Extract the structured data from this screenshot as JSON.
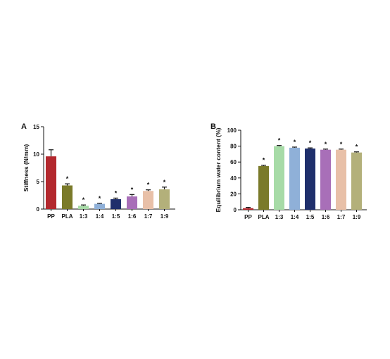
{
  "chart_data": [
    {
      "panel": "A",
      "type": "bar",
      "ylabel": "Stiffness (N/mm)",
      "xlabel": "",
      "ylim": [
        0,
        15
      ],
      "yticks": [
        0,
        5,
        10,
        15
      ],
      "categories": [
        "PP",
        "PLA",
        "1:3",
        "1:4",
        "1:5",
        "1:6",
        "1:7",
        "1:9"
      ],
      "values": [
        9.6,
        4.3,
        0.6,
        0.95,
        1.8,
        2.3,
        3.3,
        3.6
      ],
      "errors": [
        1.2,
        0.3,
        0.15,
        0.1,
        0.2,
        0.35,
        0.2,
        0.4
      ],
      "significance": [
        "",
        "*",
        "*",
        "*",
        "*",
        "*",
        "*",
        "*"
      ],
      "colors": [
        "#b3282e",
        "#7a7a2a",
        "#a7dba7",
        "#8fb0d8",
        "#1f2f6b",
        "#a86fb8",
        "#e8c0a8",
        "#b3b07a"
      ]
    },
    {
      "panel": "B",
      "type": "bar",
      "ylabel": "Equilibrium water content (%)",
      "xlabel": "",
      "ylim": [
        0,
        100
      ],
      "yticks": [
        0,
        20,
        40,
        60,
        80,
        100
      ],
      "categories": [
        "PP",
        "PLA",
        "1:3",
        "1:4",
        "1:5",
        "1:6",
        "1:7",
        "1:9"
      ],
      "values": [
        2,
        55,
        80,
        78,
        77,
        75.5,
        75.5,
        72
      ],
      "errors": [
        1,
        1,
        0.8,
        0.8,
        0.8,
        0.8,
        0.8,
        0.8
      ],
      "significance": [
        "",
        "*",
        "*",
        "*",
        "*",
        "*",
        "*",
        "*"
      ],
      "colors": [
        "#b3282e",
        "#7a7a2a",
        "#a7dba7",
        "#8fb0d8",
        "#1f2f6b",
        "#a86fb8",
        "#e8c0a8",
        "#b3b07a"
      ]
    }
  ]
}
